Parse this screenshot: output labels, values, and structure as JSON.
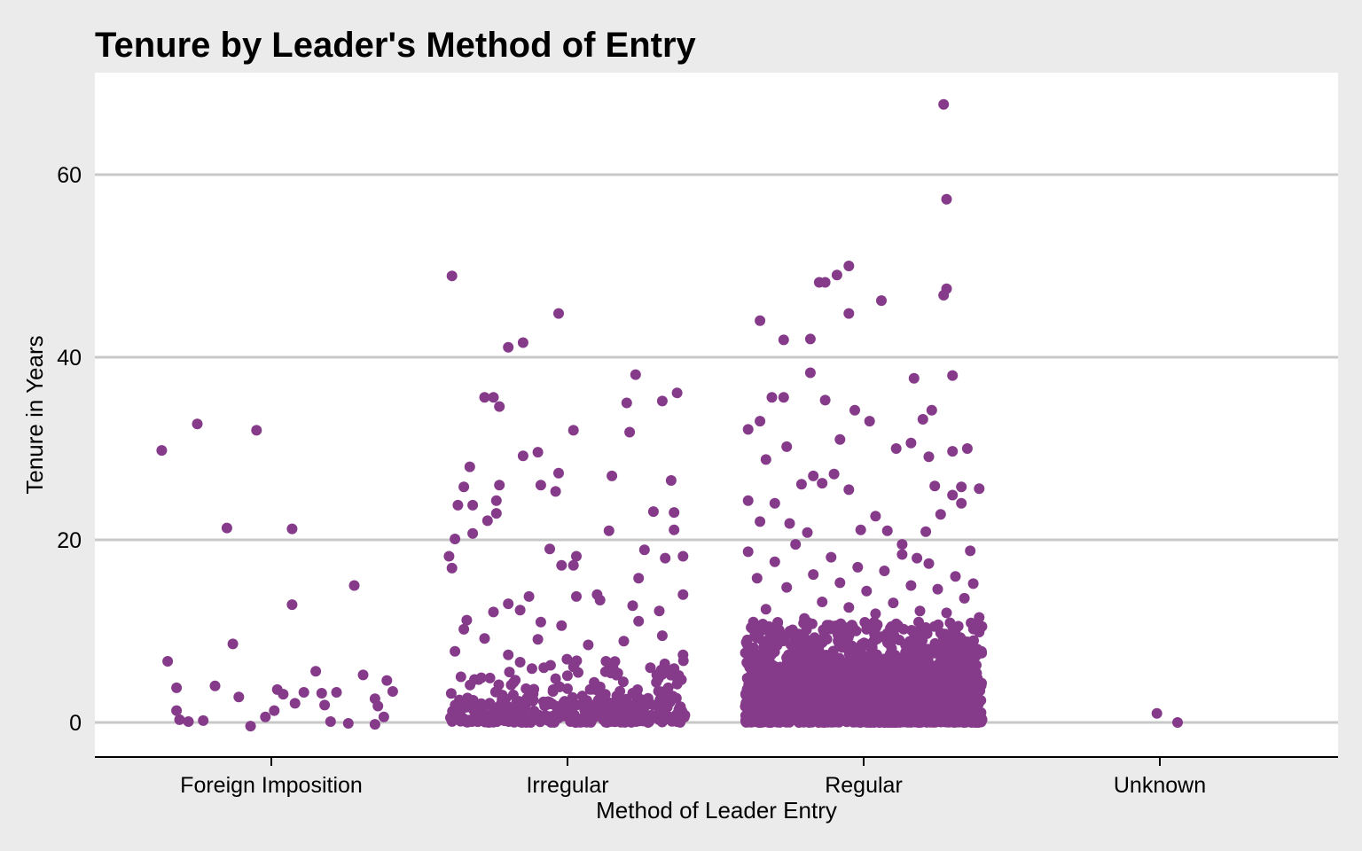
{
  "chart_data": {
    "type": "scatter",
    "title": "Tenure by Leader's Method of Entry",
    "xlabel": "Method of Leader Entry",
    "ylabel": "Tenure in Years",
    "categories": [
      "Foreign Imposition",
      "Irregular",
      "Regular",
      "Unknown"
    ],
    "y_ticks": [
      0,
      20,
      40,
      60
    ],
    "ylim": [
      -4,
      71
    ],
    "grid": "horizontal major gridlines",
    "legend": "none",
    "point_color": "#853A8A",
    "series": [
      {
        "category": "Foreign Imposition",
        "points": [
          [
            -0.37,
            29.8
          ],
          [
            -0.35,
            6.7
          ],
          [
            -0.32,
            3.8
          ],
          [
            -0.32,
            1.3
          ],
          [
            -0.31,
            0.3
          ],
          [
            -0.28,
            0.1
          ],
          [
            -0.25,
            32.7
          ],
          [
            -0.23,
            0.2
          ],
          [
            -0.19,
            4.0
          ],
          [
            -0.15,
            21.3
          ],
          [
            -0.13,
            8.6
          ],
          [
            -0.11,
            2.8
          ],
          [
            -0.07,
            -0.4
          ],
          [
            -0.05,
            32.0
          ],
          [
            -0.02,
            0.6
          ],
          [
            0.01,
            1.3
          ],
          [
            0.02,
            3.6
          ],
          [
            0.04,
            3.1
          ],
          [
            0.07,
            21.2
          ],
          [
            0.07,
            12.9
          ],
          [
            0.08,
            2.1
          ],
          [
            0.11,
            3.3
          ],
          [
            0.15,
            5.6
          ],
          [
            0.17,
            3.2
          ],
          [
            0.18,
            1.9
          ],
          [
            0.2,
            0.1
          ],
          [
            0.22,
            3.3
          ],
          [
            0.26,
            -0.1
          ],
          [
            0.28,
            15.0
          ],
          [
            0.31,
            5.2
          ],
          [
            0.35,
            -0.2
          ],
          [
            0.35,
            2.6
          ],
          [
            0.36,
            1.8
          ],
          [
            0.38,
            0.6
          ],
          [
            0.39,
            4.6
          ],
          [
            0.41,
            3.4
          ]
        ]
      },
      {
        "category": "Irregular",
        "points": [
          [
            -0.39,
            48.9
          ],
          [
            -0.28,
            35.6
          ],
          [
            -0.25,
            35.6
          ],
          [
            -0.23,
            34.6
          ],
          [
            -0.2,
            41.1
          ],
          [
            -0.15,
            41.6
          ],
          [
            -0.03,
            44.8
          ],
          [
            -0.4,
            18.2
          ],
          [
            -0.39,
            16.9
          ],
          [
            -0.38,
            20.1
          ],
          [
            -0.37,
            23.8
          ],
          [
            -0.35,
            25.8
          ],
          [
            -0.33,
            28.0
          ],
          [
            -0.32,
            20.7
          ],
          [
            -0.34,
            11.2
          ],
          [
            -0.32,
            23.8
          ],
          [
            -0.27,
            22.1
          ],
          [
            -0.24,
            22.9
          ],
          [
            -0.23,
            26.0
          ],
          [
            -0.24,
            24.3
          ],
          [
            -0.15,
            29.2
          ],
          [
            -0.13,
            13.8
          ],
          [
            -0.1,
            29.6
          ],
          [
            -0.09,
            26.0
          ],
          [
            -0.06,
            19.0
          ],
          [
            -0.04,
            25.3
          ],
          [
            -0.03,
            27.3
          ],
          [
            -0.02,
            17.2
          ],
          [
            0.02,
            17.2
          ],
          [
            0.02,
            32.0
          ],
          [
            0.03,
            18.2
          ],
          [
            0.1,
            14.0
          ],
          [
            0.15,
            27.0
          ],
          [
            0.14,
            21.0
          ],
          [
            0.2,
            35.0
          ],
          [
            0.21,
            31.8
          ],
          [
            0.23,
            38.1
          ],
          [
            0.24,
            15.8
          ],
          [
            0.29,
            23.1
          ],
          [
            0.32,
            35.2
          ],
          [
            0.35,
            26.5
          ],
          [
            0.36,
            21.1
          ],
          [
            0.36,
            23.0
          ],
          [
            0.37,
            36.1
          ],
          [
            0.39,
            18.2
          ],
          [
            0.39,
            14.0
          ],
          [
            0.33,
            18.0
          ],
          [
            0.31,
            12.2
          ],
          [
            0.26,
            18.9
          ],
          [
            0.22,
            12.8
          ],
          [
            -0.38,
            7.8
          ],
          [
            -0.36,
            5.0
          ],
          [
            -0.35,
            10.2
          ],
          [
            -0.3,
            4.7
          ],
          [
            -0.28,
            9.2
          ],
          [
            -0.25,
            12.1
          ],
          [
            -0.22,
            3.0
          ],
          [
            -0.2,
            7.4
          ],
          [
            -0.2,
            13.0
          ],
          [
            -0.19,
            4.1
          ],
          [
            -0.16,
            12.3
          ],
          [
            -0.16,
            6.6
          ],
          [
            -0.14,
            3.7
          ],
          [
            -0.12,
            5.9
          ],
          [
            -0.1,
            9.1
          ],
          [
            -0.09,
            11.0
          ],
          [
            -0.08,
            6.0
          ],
          [
            -0.06,
            2.2
          ],
          [
            -0.04,
            4.8
          ],
          [
            -0.02,
            10.6
          ],
          [
            0.0,
            3.7
          ],
          [
            0.02,
            6.1
          ],
          [
            0.03,
            13.8
          ],
          [
            0.05,
            2.9
          ],
          [
            0.07,
            8.5
          ],
          [
            0.09,
            4.4
          ],
          [
            0.11,
            13.4
          ],
          [
            0.13,
            6.7
          ],
          [
            0.15,
            2.1
          ],
          [
            0.17,
            5.4
          ],
          [
            0.19,
            8.9
          ],
          [
            0.22,
            3.2
          ],
          [
            0.24,
            11.1
          ],
          [
            0.25,
            2.5
          ],
          [
            0.28,
            6.0
          ],
          [
            0.3,
            4.4
          ],
          [
            0.32,
            9.5
          ],
          [
            0.34,
            3.8
          ],
          [
            0.36,
            5.9
          ],
          [
            0.38,
            1.7
          ],
          [
            0.39,
            7.4
          ],
          [
            0.37,
            4.2
          ],
          [
            -0.24,
            1.1
          ],
          [
            -0.12,
            0.5
          ],
          [
            0.06,
            1.5
          ],
          [
            0.18,
            0.3
          ],
          [
            0.29,
            1.9
          ],
          [
            0.35,
            0.4
          ],
          [
            -0.33,
            0.2
          ],
          [
            0.01,
            0.1
          ]
        ]
      },
      {
        "category": "Regular",
        "points": [
          [
            0.27,
            67.7
          ],
          [
            0.28,
            57.3
          ],
          [
            0.28,
            47.5
          ],
          [
            0.27,
            46.8
          ],
          [
            0.06,
            46.2
          ],
          [
            -0.05,
            50.0
          ],
          [
            -0.09,
            49.0
          ],
          [
            -0.15,
            48.2
          ],
          [
            -0.13,
            48.2
          ],
          [
            -0.35,
            44.0
          ],
          [
            -0.27,
            41.9
          ],
          [
            -0.18,
            42.0
          ],
          [
            -0.18,
            38.3
          ],
          [
            -0.39,
            32.1
          ],
          [
            -0.35,
            33.0
          ],
          [
            -0.31,
            35.6
          ],
          [
            -0.27,
            35.6
          ],
          [
            -0.26,
            30.2
          ],
          [
            -0.33,
            28.8
          ],
          [
            -0.21,
            26.1
          ],
          [
            -0.17,
            27.0
          ],
          [
            -0.13,
            35.3
          ],
          [
            -0.08,
            31.0
          ],
          [
            -0.03,
            34.2
          ],
          [
            0.02,
            33.0
          ],
          [
            0.11,
            30.0
          ],
          [
            0.16,
            30.6
          ],
          [
            0.17,
            37.7
          ],
          [
            0.2,
            33.2
          ],
          [
            0.23,
            34.2
          ],
          [
            0.22,
            29.1
          ],
          [
            0.3,
            38.0
          ],
          [
            0.3,
            29.7
          ],
          [
            0.35,
            30.0
          ],
          [
            0.33,
            25.8
          ],
          [
            0.39,
            25.6
          ],
          [
            0.24,
            25.9
          ],
          [
            0.3,
            24.9
          ],
          [
            -0.39,
            24.3
          ],
          [
            -0.35,
            22.0
          ],
          [
            -0.3,
            24.0
          ],
          [
            -0.25,
            21.8
          ],
          [
            -0.19,
            20.8
          ],
          [
            -0.14,
            26.2
          ],
          [
            -0.1,
            27.2
          ],
          [
            -0.05,
            25.5
          ],
          [
            -0.01,
            21.1
          ],
          [
            0.04,
            22.6
          ],
          [
            0.08,
            21.0
          ],
          [
            0.13,
            19.5
          ],
          [
            0.18,
            18.0
          ],
          [
            0.21,
            20.9
          ],
          [
            0.26,
            22.8
          ],
          [
            0.33,
            24.0
          ],
          [
            0.36,
            18.8
          ],
          [
            -0.39,
            18.7
          ],
          [
            -0.36,
            15.8
          ],
          [
            -0.33,
            12.4
          ],
          [
            -0.3,
            17.6
          ],
          [
            -0.26,
            14.8
          ],
          [
            -0.23,
            19.5
          ],
          [
            -0.2,
            11.4
          ],
          [
            -0.17,
            16.2
          ],
          [
            -0.14,
            13.2
          ],
          [
            -0.11,
            18.1
          ],
          [
            -0.08,
            15.3
          ],
          [
            -0.05,
            12.6
          ],
          [
            -0.02,
            17.0
          ],
          [
            0.01,
            14.4
          ],
          [
            0.04,
            11.9
          ],
          [
            0.07,
            16.6
          ],
          [
            0.1,
            13.1
          ],
          [
            0.13,
            18.4
          ],
          [
            0.16,
            15.0
          ],
          [
            0.19,
            12.2
          ],
          [
            0.22,
            17.4
          ],
          [
            0.25,
            14.6
          ],
          [
            0.28,
            12.0
          ],
          [
            0.31,
            16.0
          ],
          [
            0.34,
            13.6
          ],
          [
            0.37,
            15.2
          ],
          [
            0.39,
            11.5
          ],
          [
            -0.38,
            10.4
          ],
          [
            -0.34,
            8.9
          ],
          [
            -0.29,
            10.9
          ],
          [
            -0.24,
            9.6
          ],
          [
            -0.19,
            11.0
          ],
          [
            -0.14,
            9.1
          ],
          [
            -0.09,
            10.6
          ],
          [
            -0.04,
            8.4
          ],
          [
            0.01,
            10.2
          ],
          [
            0.06,
            9.4
          ],
          [
            0.11,
            10.8
          ],
          [
            0.16,
            8.6
          ],
          [
            0.21,
            10.4
          ],
          [
            0.26,
            9.8
          ],
          [
            0.31,
            10.1
          ],
          [
            0.36,
            8.8
          ],
          [
            0.39,
            9.9
          ],
          [
            -0.33,
            6.9
          ],
          [
            -0.22,
            7.5
          ],
          [
            -0.12,
            6.4
          ],
          [
            -0.01,
            7.8
          ],
          [
            0.09,
            6.7
          ],
          [
            0.19,
            7.9
          ],
          [
            0.29,
            6.2
          ],
          [
            0.38,
            7.3
          ],
          [
            -0.05,
            44.8
          ]
        ]
      },
      {
        "category": "Unknown",
        "points": [
          [
            -0.01,
            1.0
          ],
          [
            0.06,
            0.0
          ]
        ]
      }
    ],
    "dense_regions": [
      {
        "category": "Irregular",
        "x_jitter": [
          -0.4,
          0.4
        ],
        "y_range": [
          0,
          2.5
        ],
        "count": 280
      },
      {
        "category": "Irregular",
        "x_jitter": [
          -0.4,
          0.4
        ],
        "y_range": [
          2.5,
          7
        ],
        "count": 70
      },
      {
        "category": "Regular",
        "x_jitter": [
          -0.4,
          0.4
        ],
        "y_range": [
          0,
          6
        ],
        "count": 1700
      },
      {
        "category": "Regular",
        "x_jitter": [
          -0.4,
          0.4
        ],
        "y_range": [
          6,
          11
        ],
        "count": 400
      }
    ]
  }
}
